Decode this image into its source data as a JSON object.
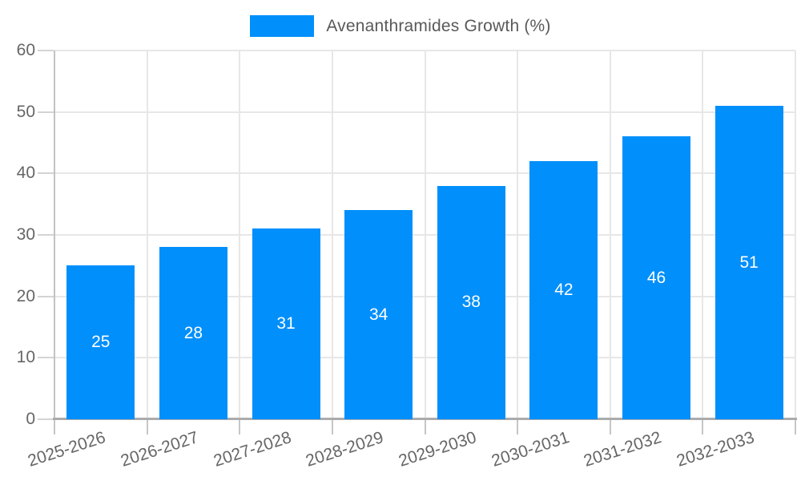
{
  "chart": {
    "legend": {
      "label": "Avenanthramides Growth (%)"
    }
  },
  "chart_data": {
    "type": "bar",
    "title": "Avenanthramides Growth (%)",
    "categories": [
      "2025-2026",
      "2026-2027",
      "2027-2028",
      "2028-2029",
      "2029-2030",
      "2030-2031",
      "2031-2032",
      "2032-2033"
    ],
    "series": [
      {
        "name": "Avenanthramides Growth (%)",
        "values": [
          25,
          28,
          31,
          34,
          38,
          42,
          46,
          51
        ]
      }
    ],
    "value_labels": [
      "25",
      "28",
      "31",
      "34",
      "38",
      "42",
      "46",
      "51"
    ],
    "xlabel": "",
    "ylabel": "",
    "ylim": [
      0,
      60
    ],
    "yticks": [
      0,
      10,
      20,
      30,
      40,
      50,
      60
    ],
    "grid": true,
    "legend_position": "top",
    "colors": {
      "bar": "#008ffb",
      "value_label": "#ffffff",
      "tick_text": "#666666",
      "legend_text": "#595959",
      "grid": "#e7e7e7",
      "axis": "#ababab"
    }
  }
}
